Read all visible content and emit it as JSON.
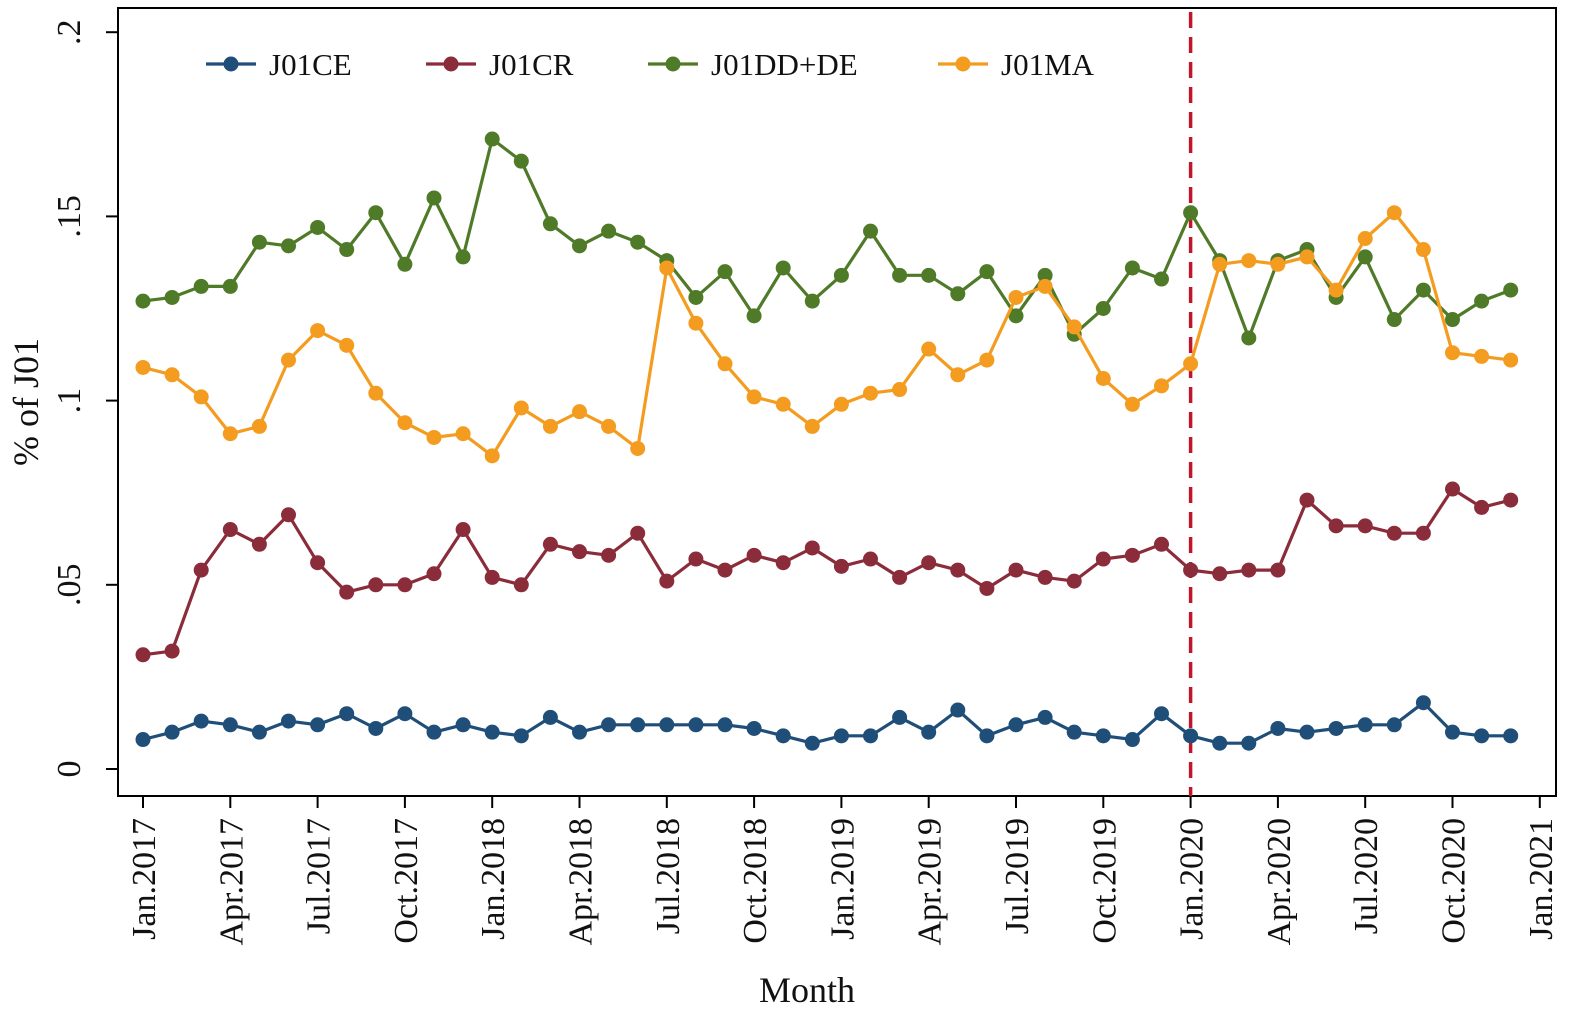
{
  "chart_data": {
    "type": "line",
    "title": "",
    "xlabel": "Month",
    "ylabel": "% of J01",
    "ylim": [
      0,
      0.2
    ],
    "yticks": [
      0,
      0.05,
      0.1,
      0.15,
      0.2
    ],
    "ytick_labels": [
      "0",
      ".05",
      ".1",
      ".15",
      ".2"
    ],
    "x_months": [
      "Jan.2017",
      "Feb.2017",
      "Mar.2017",
      "Apr.2017",
      "May.2017",
      "Jun.2017",
      "Jul.2017",
      "Aug.2017",
      "Sep.2017",
      "Oct.2017",
      "Nov.2017",
      "Dec.2017",
      "Jan.2018",
      "Feb.2018",
      "Mar.2018",
      "Apr.2018",
      "May.2018",
      "Jun.2018",
      "Jul.2018",
      "Aug.2018",
      "Sep.2018",
      "Oct.2018",
      "Nov.2018",
      "Dec.2018",
      "Jan.2019",
      "Feb.2019",
      "Mar.2019",
      "Apr.2019",
      "May.2019",
      "Jun.2019",
      "Jul.2019",
      "Aug.2019",
      "Sep.2019",
      "Oct.2019",
      "Nov.2019",
      "Dec.2019",
      "Jan.2020",
      "Feb.2020",
      "Mar.2020",
      "Apr.2020",
      "May.2020",
      "Jun.2020",
      "Jul.2020",
      "Aug.2020",
      "Sep.2020",
      "Oct.2020",
      "Nov.2020",
      "Dec.2020"
    ],
    "xtick_labels": [
      "Jan.2017",
      "Apr.2017",
      "Jul.2017",
      "Oct.2017",
      "Jan.2018",
      "Apr.2018",
      "Jul.2018",
      "Oct.2018",
      "Jan.2019",
      "Apr.2019",
      "Jul.2019",
      "Oct.2019",
      "Jan.2020",
      "Apr.2020",
      "Jul.2020",
      "Oct.2020",
      "Jan.2021"
    ],
    "xtick_positions": [
      0,
      3,
      6,
      9,
      12,
      15,
      18,
      21,
      24,
      27,
      30,
      33,
      36,
      39,
      42,
      45,
      48
    ],
    "vline": {
      "x_index": 36,
      "color": "#c0162c",
      "style": "dashed"
    },
    "legend_position": "top",
    "grid": false,
    "series": [
      {
        "name": "J01CE",
        "color": "#1f4e79",
        "values": [
          0.008,
          0.01,
          0.013,
          0.012,
          0.01,
          0.013,
          0.012,
          0.015,
          0.011,
          0.015,
          0.01,
          0.012,
          0.01,
          0.009,
          0.014,
          0.01,
          0.012,
          0.012,
          0.012,
          0.012,
          0.012,
          0.011,
          0.009,
          0.007,
          0.009,
          0.009,
          0.014,
          0.01,
          0.016,
          0.009,
          0.012,
          0.014,
          0.01,
          0.009,
          0.008,
          0.015,
          0.009,
          0.007,
          0.007,
          0.011,
          0.01,
          0.011,
          0.012,
          0.012,
          0.018,
          0.01,
          0.009,
          0.009
        ]
      },
      {
        "name": "J01CR",
        "color": "#8b2c3a",
        "values": [
          0.031,
          0.032,
          0.054,
          0.065,
          0.061,
          0.069,
          0.056,
          0.048,
          0.05,
          0.05,
          0.053,
          0.065,
          0.052,
          0.05,
          0.061,
          0.059,
          0.058,
          0.064,
          0.051,
          0.057,
          0.054,
          0.058,
          0.056,
          0.06,
          0.055,
          0.057,
          0.052,
          0.056,
          0.054,
          0.049,
          0.054,
          0.052,
          0.051,
          0.057,
          0.058,
          0.061,
          0.054,
          0.053,
          0.054,
          0.054,
          0.073,
          0.066,
          0.066,
          0.064,
          0.064,
          0.076,
          0.071,
          0.073
        ]
      },
      {
        "name": "J01DD+DE",
        "color": "#4f7a28",
        "values": [
          0.127,
          0.128,
          0.131,
          0.131,
          0.143,
          0.142,
          0.147,
          0.141,
          0.151,
          0.137,
          0.155,
          0.139,
          0.171,
          0.165,
          0.148,
          0.142,
          0.146,
          0.143,
          0.138,
          0.128,
          0.135,
          0.123,
          0.136,
          0.127,
          0.134,
          0.146,
          0.134,
          0.134,
          0.129,
          0.135,
          0.123,
          0.134,
          0.118,
          0.125,
          0.136,
          0.133,
          0.151,
          0.138,
          0.117,
          0.138,
          0.141,
          0.128,
          0.139,
          0.122,
          0.13,
          0.122,
          0.127,
          0.13
        ]
      },
      {
        "name": "J01MA",
        "color": "#f39c1f",
        "values": [
          0.109,
          0.107,
          0.101,
          0.091,
          0.093,
          0.111,
          0.119,
          0.115,
          0.102,
          0.094,
          0.09,
          0.091,
          0.085,
          0.098,
          0.093,
          0.097,
          0.093,
          0.087,
          0.136,
          0.121,
          0.11,
          0.101,
          0.099,
          0.093,
          0.099,
          0.102,
          0.103,
          0.114,
          0.107,
          0.111,
          0.128,
          0.131,
          0.12,
          0.106,
          0.099,
          0.104,
          0.11,
          0.137,
          0.138,
          0.137,
          0.139,
          0.13,
          0.144,
          0.151,
          0.141,
          0.113,
          0.112,
          0.111
        ]
      }
    ]
  }
}
